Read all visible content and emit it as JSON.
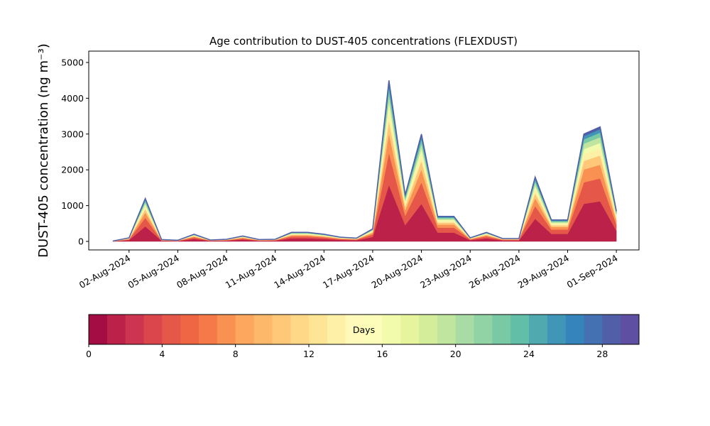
{
  "chart_data": {
    "type": "stacked_area",
    "title": "Age contribution to DUST-405 concentrations (FLEXDUST)",
    "y_label": "DUST-405 concentration (ng m⁻³)",
    "x": [
      "2024-08-01",
      "2024-08-02",
      "2024-08-03",
      "2024-08-04",
      "2024-08-05",
      "2024-08-06",
      "2024-08-07",
      "2024-08-08",
      "2024-08-09",
      "2024-08-10",
      "2024-08-11",
      "2024-08-12",
      "2024-08-13",
      "2024-08-14",
      "2024-08-15",
      "2024-08-16",
      "2024-08-17",
      "2024-08-18",
      "2024-08-19",
      "2024-08-20",
      "2024-08-21",
      "2024-08-22",
      "2024-08-23",
      "2024-08-24",
      "2024-08-25",
      "2024-08-26",
      "2024-08-27",
      "2024-08-28",
      "2024-08-29",
      "2024-08-30",
      "2024-08-31",
      "2024-09-01"
    ],
    "series": [
      {
        "color": "#bb2149",
        "values": [
          4,
          35,
          420,
          18,
          11,
          70,
          14,
          21,
          53,
          18,
          21,
          88,
          88,
          70,
          42,
          32,
          123,
          1575,
          455,
          1050,
          245,
          245,
          35,
          88,
          28,
          28,
          630,
          210,
          210,
          1050,
          1120,
          298
        ]
      },
      {
        "color": "#e55749",
        "values": [
          2,
          20,
          240,
          10,
          6,
          40,
          8,
          12,
          30,
          10,
          12,
          50,
          50,
          40,
          24,
          18,
          70,
          900,
          260,
          600,
          140,
          140,
          20,
          50,
          16,
          16,
          360,
          120,
          120,
          600,
          640,
          170
        ]
      },
      {
        "color": "#f99153",
        "values": [
          1,
          12,
          144,
          6,
          4,
          24,
          5,
          7,
          18,
          6,
          7,
          30,
          30,
          24,
          14,
          11,
          42,
          540,
          156,
          360,
          84,
          84,
          12,
          30,
          10,
          10,
          216,
          72,
          72,
          360,
          384,
          102
        ]
      },
      {
        "color": "#fec878",
        "values": [
          1,
          8,
          96,
          4,
          2,
          16,
          3,
          5,
          12,
          4,
          5,
          20,
          20,
          16,
          10,
          7,
          28,
          360,
          104,
          240,
          56,
          56,
          8,
          20,
          6,
          6,
          144,
          48,
          48,
          240,
          256,
          68
        ]
      },
      {
        "color": "#fff0a7",
        "values": [
          1,
          6,
          72,
          3,
          2,
          12,
          2,
          4,
          9,
          3,
          4,
          15,
          15,
          12,
          7,
          5,
          21,
          270,
          78,
          180,
          42,
          42,
          6,
          15,
          5,
          5,
          108,
          36,
          36,
          180,
          192,
          51
        ]
      },
      {
        "color": "#f2faab",
        "values": [
          1,
          5,
          60,
          3,
          2,
          10,
          2,
          3,
          8,
          3,
          3,
          13,
          13,
          10,
          6,
          5,
          18,
          225,
          65,
          150,
          35,
          35,
          5,
          13,
          4,
          4,
          90,
          30,
          30,
          150,
          160,
          43
        ]
      },
      {
        "color": "#bfe59f",
        "values": [
          1,
          5,
          60,
          3,
          2,
          10,
          2,
          3,
          8,
          3,
          3,
          13,
          13,
          10,
          6,
          5,
          18,
          225,
          65,
          150,
          35,
          35,
          5,
          13,
          4,
          4,
          90,
          30,
          30,
          150,
          160,
          43
        ]
      },
      {
        "color": "#79c9a5",
        "values": [
          0,
          4,
          48,
          2,
          1,
          8,
          2,
          2,
          6,
          2,
          2,
          10,
          10,
          8,
          5,
          4,
          14,
          180,
          52,
          120,
          28,
          28,
          4,
          10,
          3,
          3,
          72,
          24,
          24,
          120,
          128,
          34
        ]
      },
      {
        "color": "#3f96b7",
        "values": [
          0,
          3,
          36,
          2,
          1,
          6,
          1,
          2,
          5,
          2,
          2,
          8,
          8,
          6,
          4,
          3,
          11,
          135,
          39,
          90,
          21,
          21,
          3,
          8,
          2,
          2,
          54,
          18,
          18,
          90,
          96,
          26
        ]
      },
      {
        "color": "#515ea8",
        "values": [
          0,
          2,
          24,
          1,
          1,
          4,
          1,
          1,
          3,
          1,
          1,
          5,
          5,
          4,
          2,
          2,
          7,
          90,
          26,
          60,
          14,
          14,
          2,
          5,
          2,
          2,
          36,
          12,
          12,
          60,
          64,
          17
        ]
      }
    ],
    "xlim": [
      "2024-07-31",
      "2024-09-02"
    ],
    "xticks": [
      {
        "value": "2024-08-02",
        "label": "02-Aug-2024"
      },
      {
        "value": "2024-08-05",
        "label": "05-Aug-2024"
      },
      {
        "value": "2024-08-08",
        "label": "08-Aug-2024"
      },
      {
        "value": "2024-08-11",
        "label": "11-Aug-2024"
      },
      {
        "value": "2024-08-14",
        "label": "14-Aug-2024"
      },
      {
        "value": "2024-08-17",
        "label": "17-Aug-2024"
      },
      {
        "value": "2024-08-20",
        "label": "20-Aug-2024"
      },
      {
        "value": "2024-08-23",
        "label": "23-Aug-2024"
      },
      {
        "value": "2024-08-26",
        "label": "26-Aug-2024"
      },
      {
        "value": "2024-08-29",
        "label": "29-Aug-2024"
      },
      {
        "value": "2024-09-01",
        "label": "01-Sep-2024"
      }
    ],
    "ylim": [
      -238,
      5317
    ],
    "yticks": [
      0,
      1000,
      2000,
      3000,
      4000,
      5000
    ],
    "colorbar": {
      "label": "Days",
      "lim": [
        0,
        30
      ],
      "ticks": [
        0,
        4,
        8,
        12,
        16,
        20,
        24,
        28
      ],
      "colors": [
        "#a40d44",
        "#bb2149",
        "#cd3450",
        "#db464d",
        "#e55749",
        "#ef6645",
        "#f67a49",
        "#f99153",
        "#fca65e",
        "#fdb869",
        "#fec878",
        "#fed787",
        "#fee596",
        "#fff0a7",
        "#fffab9",
        "#fbfdb9",
        "#f2faab",
        "#e6f59d",
        "#d4ed9b",
        "#bfe59f",
        "#a8dca4",
        "#91d3a4",
        "#79c9a5",
        "#62bea6",
        "#50a9af",
        "#3f96b7",
        "#3585bc",
        "#4371b1",
        "#515ea8",
        "#5e4fa2"
      ]
    }
  }
}
